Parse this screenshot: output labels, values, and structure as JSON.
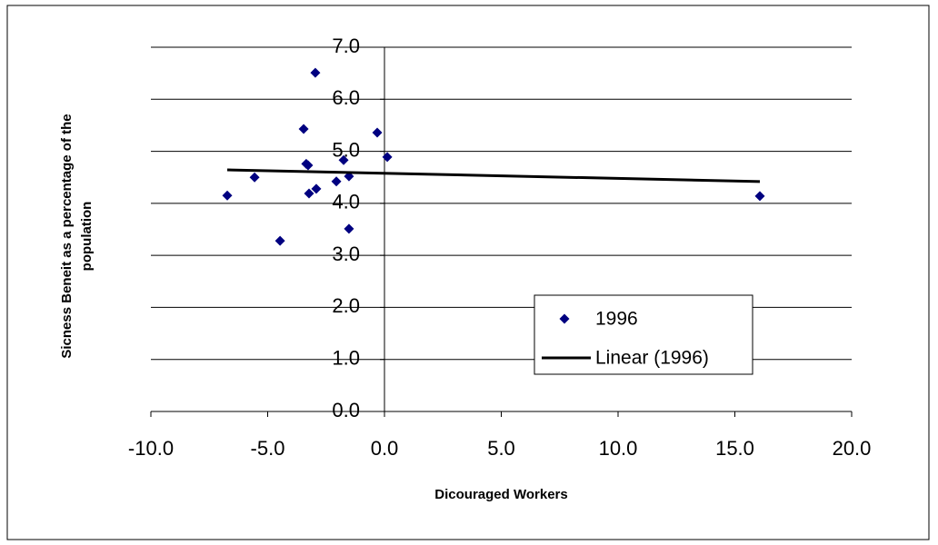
{
  "chart_data": {
    "type": "scatter",
    "xlabel": "Dicouraged Workers",
    "ylabel": [
      "Sicness Beneit as a percentage of the",
      "population"
    ],
    "series": [
      {
        "name": "1996",
        "color": "#000080",
        "x": [
          -6.73,
          -5.56,
          -4.47,
          -3.46,
          -3.35,
          -3.27,
          -3.23,
          -2.96,
          -2.92,
          -2.06,
          -1.75,
          -1.52,
          -1.52,
          -0.31,
          0.12,
          16.07
        ],
        "values": [
          4.15,
          4.5,
          3.28,
          5.43,
          4.76,
          4.73,
          4.19,
          6.51,
          4.28,
          4.42,
          4.83,
          4.52,
          3.51,
          5.36,
          4.89,
          4.14
        ]
      }
    ],
    "trendline": {
      "name": "Linear (1996)",
      "color": "#000000"
    },
    "xlim": [
      -10,
      20
    ],
    "xticks": [
      {
        "value": -10,
        "label": "-10.0"
      },
      {
        "value": -5,
        "label": "-5.0"
      },
      {
        "value": 0,
        "label": "0.0"
      },
      {
        "value": 5,
        "label": "5.0"
      },
      {
        "value": 10,
        "label": "10.0"
      },
      {
        "value": 15,
        "label": "15.0"
      },
      {
        "value": 20,
        "label": "20.0"
      }
    ],
    "ylim": [
      0,
      7
    ],
    "yticks": [
      {
        "value": 0,
        "label": "0.0"
      },
      {
        "value": 1,
        "label": "1.0"
      },
      {
        "value": 2,
        "label": "2.0"
      },
      {
        "value": 3,
        "label": "3.0"
      },
      {
        "value": 4,
        "label": "4.0"
      },
      {
        "value": 5,
        "label": "5.0"
      },
      {
        "value": 6,
        "label": "6.0"
      },
      {
        "value": 7,
        "label": "7.0"
      }
    ],
    "grid": true,
    "legend": "lower-right"
  }
}
